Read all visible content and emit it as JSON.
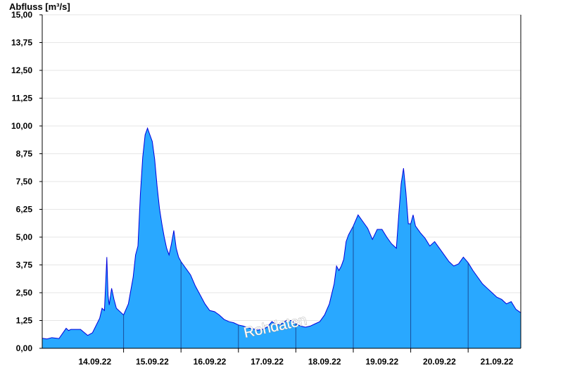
{
  "chart_data": {
    "type": "area",
    "title": "",
    "ylabel": "Abfluss [m³/s]",
    "xlabel": "",
    "watermark": "Rohdaten",
    "ylim": [
      0,
      15
    ],
    "xlim": [
      "13.09.22 14:00",
      "21.09.22 22:00"
    ],
    "grid": true,
    "y_ticks": [
      {
        "value": 0,
        "label": "0,00"
      },
      {
        "value": 1.25,
        "label": "1,25"
      },
      {
        "value": 2.5,
        "label": "2,50"
      },
      {
        "value": 3.75,
        "label": "3,75"
      },
      {
        "value": 5,
        "label": "5,00"
      },
      {
        "value": 6.25,
        "label": "6,25"
      },
      {
        "value": 7.5,
        "label": "7,50"
      },
      {
        "value": 8.75,
        "label": "8,75"
      },
      {
        "value": 10,
        "label": "10,00"
      },
      {
        "value": 11.25,
        "label": "11,25"
      },
      {
        "value": 12.5,
        "label": "12,50"
      },
      {
        "value": 13.75,
        "label": "13,75"
      },
      {
        "value": 15,
        "label": "15,00"
      }
    ],
    "x_ticks": [
      {
        "at": "14.09.22 12:00",
        "label": "14.09.22"
      },
      {
        "at": "15.09.22 12:00",
        "label": "15.09.22"
      },
      {
        "at": "16.09.22 12:00",
        "label": "16.09.22"
      },
      {
        "at": "17.09.22 12:00",
        "label": "17.09.22"
      },
      {
        "at": "18.09.22 12:00",
        "label": "18.09.22"
      },
      {
        "at": "19.09.22 12:00",
        "label": "19.09.22"
      },
      {
        "at": "20.09.22 12:00",
        "label": "20.09.22"
      },
      {
        "at": "21.09.22 12:00",
        "label": "21.09.22"
      }
    ],
    "day_boundaries": [
      "15.09.22 00:00",
      "16.09.22 00:00",
      "17.09.22 00:00",
      "18.09.22 00:00",
      "19.09.22 00:00",
      "20.09.22 00:00",
      "21.09.22 00:00"
    ],
    "colors": {
      "fill": "#29a8ff",
      "line": "#0000dd",
      "separator": "#1a4d99",
      "grid": "#e6e6e6",
      "axis": "#000000"
    },
    "series": [
      {
        "points": [
          [
            "13.09.22 14:00",
            0.45
          ],
          [
            "13.09.22 16:00",
            0.42
          ],
          [
            "13.09.22 18:00",
            0.48
          ],
          [
            "13.09.22 21:00",
            0.44
          ],
          [
            "14.09.22 00:00",
            0.9
          ],
          [
            "14.09.22 01:00",
            0.8
          ],
          [
            "14.09.22 02:00",
            0.85
          ],
          [
            "14.09.22 06:00",
            0.85
          ],
          [
            "14.09.22 09:00",
            0.58
          ],
          [
            "14.09.22 11:00",
            0.7
          ],
          [
            "14.09.22 14:00",
            1.35
          ],
          [
            "14.09.22 15:00",
            1.8
          ],
          [
            "14.09.22 16:00",
            1.7
          ],
          [
            "14.09.22 17:00",
            4.1
          ],
          [
            "14.09.22 17:30",
            2.4
          ],
          [
            "14.09.22 18:00",
            1.95
          ],
          [
            "14.09.22 19:00",
            2.7
          ],
          [
            "14.09.22 20:00",
            2.2
          ],
          [
            "14.09.22 21:00",
            1.8
          ],
          [
            "14.09.22 23:00",
            1.6
          ],
          [
            "15.09.22 00:00",
            1.5
          ],
          [
            "15.09.22 02:00",
            2.0
          ],
          [
            "15.09.22 04:00",
            3.2
          ],
          [
            "15.09.22 05:00",
            4.2
          ],
          [
            "15.09.22 06:00",
            4.6
          ],
          [
            "15.09.22 07:00",
            6.9
          ],
          [
            "15.09.22 08:00",
            8.6
          ],
          [
            "15.09.22 09:00",
            9.6
          ],
          [
            "15.09.22 10:00",
            9.9
          ],
          [
            "15.09.22 11:00",
            9.6
          ],
          [
            "15.09.22 12:00",
            9.3
          ],
          [
            "15.09.22 13:00",
            8.5
          ],
          [
            "15.09.22 14:00",
            7.3
          ],
          [
            "15.09.22 15:00",
            6.3
          ],
          [
            "15.09.22 16:00",
            5.6
          ],
          [
            "15.09.22 17:00",
            5.0
          ],
          [
            "15.09.22 18:00",
            4.5
          ],
          [
            "15.09.22 19:00",
            4.2
          ],
          [
            "15.09.22 20:00",
            4.7
          ],
          [
            "15.09.22 21:00",
            5.3
          ],
          [
            "15.09.22 22:00",
            4.5
          ],
          [
            "15.09.22 23:00",
            4.1
          ],
          [
            "16.09.22 00:00",
            3.9
          ],
          [
            "16.09.22 02:00",
            3.6
          ],
          [
            "16.09.22 04:00",
            3.3
          ],
          [
            "16.09.22 06:00",
            2.8
          ],
          [
            "16.09.22 08:00",
            2.4
          ],
          [
            "16.09.22 10:00",
            2.0
          ],
          [
            "16.09.22 12:00",
            1.7
          ],
          [
            "16.09.22 14:00",
            1.65
          ],
          [
            "16.09.22 16:00",
            1.5
          ],
          [
            "16.09.22 18:00",
            1.3
          ],
          [
            "16.09.22 20:00",
            1.2
          ],
          [
            "16.09.22 22:00",
            1.15
          ],
          [
            "17.09.22 00:00",
            1.05
          ],
          [
            "17.09.22 02:00",
            1.0
          ],
          [
            "17.09.22 04:00",
            0.92
          ],
          [
            "17.09.22 06:00",
            0.88
          ],
          [
            "17.09.22 08:00",
            0.82
          ],
          [
            "17.09.22 10:00",
            0.85
          ],
          [
            "17.09.22 12:00",
            0.95
          ],
          [
            "17.09.22 14:00",
            1.2
          ],
          [
            "17.09.22 16:00",
            1.05
          ],
          [
            "17.09.22 18:00",
            1.1
          ],
          [
            "17.09.22 20:00",
            1.25
          ],
          [
            "17.09.22 22:00",
            1.25
          ],
          [
            "18.09.22 00:00",
            1.1
          ],
          [
            "18.09.22 02:00",
            1.0
          ],
          [
            "18.09.22 04:00",
            0.95
          ],
          [
            "18.09.22 06:00",
            1.0
          ],
          [
            "18.09.22 08:00",
            1.1
          ],
          [
            "18.09.22 10:00",
            1.2
          ],
          [
            "18.09.22 12:00",
            1.5
          ],
          [
            "18.09.22 14:00",
            2.0
          ],
          [
            "18.09.22 16:00",
            2.9
          ],
          [
            "18.09.22 17:00",
            3.7
          ],
          [
            "18.09.22 18:00",
            3.5
          ],
          [
            "18.09.22 19:00",
            3.7
          ],
          [
            "18.09.22 20:00",
            4.0
          ],
          [
            "18.09.22 21:00",
            4.8
          ],
          [
            "18.09.22 22:00",
            5.1
          ],
          [
            "19.09.22 00:00",
            5.5
          ],
          [
            "19.09.22 02:00",
            6.0
          ],
          [
            "19.09.22 04:00",
            5.7
          ],
          [
            "19.09.22 06:00",
            5.4
          ],
          [
            "19.09.22 08:00",
            4.9
          ],
          [
            "19.09.22 10:00",
            5.35
          ],
          [
            "19.09.22 12:00",
            5.35
          ],
          [
            "19.09.22 14:00",
            5.0
          ],
          [
            "19.09.22 16:00",
            4.7
          ],
          [
            "19.09.22 18:00",
            4.5
          ],
          [
            "19.09.22 19:00",
            6.0
          ],
          [
            "19.09.22 20:00",
            7.4
          ],
          [
            "19.09.22 21:00",
            8.1
          ],
          [
            "19.09.22 22:00",
            7.0
          ],
          [
            "19.09.22 23:00",
            5.6
          ],
          [
            "20.09.22 00:00",
            5.6
          ],
          [
            "20.09.22 01:00",
            6.0
          ],
          [
            "20.09.22 02:00",
            5.5
          ],
          [
            "20.09.22 04:00",
            5.2
          ],
          [
            "20.09.22 06:00",
            4.95
          ],
          [
            "20.09.22 08:00",
            4.6
          ],
          [
            "20.09.22 10:00",
            4.8
          ],
          [
            "20.09.22 12:00",
            4.5
          ],
          [
            "20.09.22 14:00",
            4.2
          ],
          [
            "20.09.22 16:00",
            3.9
          ],
          [
            "20.09.22 18:00",
            3.7
          ],
          [
            "20.09.22 20:00",
            3.8
          ],
          [
            "20.09.22 22:00",
            4.1
          ],
          [
            "21.09.22 00:00",
            3.85
          ],
          [
            "21.09.22 02:00",
            3.5
          ],
          [
            "21.09.22 04:00",
            3.2
          ],
          [
            "21.09.22 06:00",
            2.9
          ],
          [
            "21.09.22 08:00",
            2.7
          ],
          [
            "21.09.22 10:00",
            2.5
          ],
          [
            "21.09.22 12:00",
            2.3
          ],
          [
            "21.09.22 14:00",
            2.2
          ],
          [
            "21.09.22 16:00",
            2.0
          ],
          [
            "21.09.22 18:00",
            2.1
          ],
          [
            "21.09.22 20:00",
            1.75
          ],
          [
            "21.09.22 22:00",
            1.6
          ]
        ]
      }
    ]
  }
}
